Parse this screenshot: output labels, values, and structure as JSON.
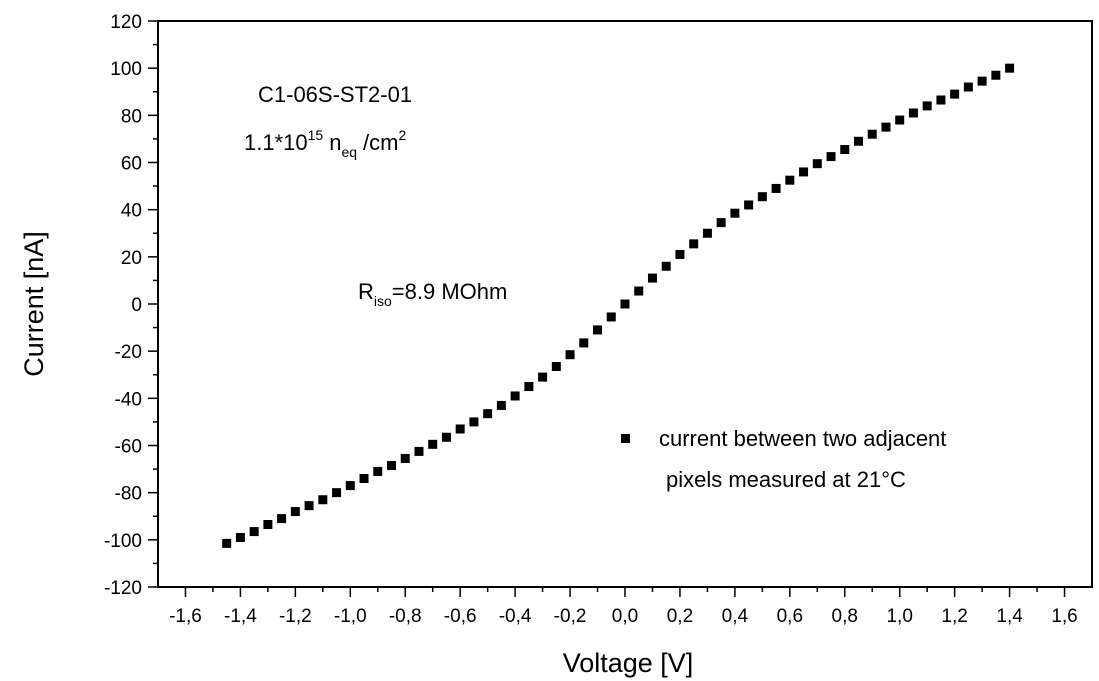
{
  "chart_data": {
    "type": "scatter",
    "xlabel": "Voltage [V]",
    "ylabel": "Current [nA]",
    "xlim": [
      -1.7,
      1.7
    ],
    "ylim": [
      -120,
      120
    ],
    "x_ticks": [
      -1.6,
      -1.4,
      -1.2,
      -1.0,
      -0.8,
      -0.6,
      -0.4,
      -0.2,
      0.0,
      0.2,
      0.4,
      0.6,
      0.8,
      1.0,
      1.2,
      1.4,
      1.6
    ],
    "x_tick_labels": [
      "-1,6",
      "-1,4",
      "-1,2",
      "-1,0",
      "-0,8",
      "-0,6",
      "-0,4",
      "-0,2",
      "0,0",
      "0,2",
      "0,4",
      "0,6",
      "0,8",
      "1,0",
      "1,2",
      "1,4",
      "1,6"
    ],
    "y_ticks": [
      -120,
      -100,
      -80,
      -60,
      -40,
      -20,
      0,
      20,
      40,
      60,
      80,
      100,
      120
    ],
    "y_tick_labels": [
      "-120",
      "-100",
      "-80",
      "-60",
      "-40",
      "-20",
      "0",
      "20",
      "40",
      "60",
      "80",
      "100",
      "120"
    ],
    "grid": false,
    "legend_position": "bottom-right",
    "marker_color": "#000000",
    "series": [
      {
        "name": "current between two adjacent pixels measured at 21°C",
        "x": [
          -1.45,
          -1.4,
          -1.35,
          -1.3,
          -1.25,
          -1.2,
          -1.15,
          -1.1,
          -1.05,
          -1.0,
          -0.95,
          -0.9,
          -0.85,
          -0.8,
          -0.75,
          -0.7,
          -0.65,
          -0.6,
          -0.55,
          -0.5,
          -0.45,
          -0.4,
          -0.35,
          -0.3,
          -0.25,
          -0.2,
          -0.15,
          -0.1,
          -0.05,
          0.0,
          0.05,
          0.1,
          0.15,
          0.2,
          0.25,
          0.3,
          0.35,
          0.4,
          0.45,
          0.5,
          0.55,
          0.6,
          0.65,
          0.7,
          0.75,
          0.8,
          0.85,
          0.9,
          0.95,
          1.0,
          1.05,
          1.1,
          1.15,
          1.2,
          1.25,
          1.3,
          1.35,
          1.4
        ],
        "y": [
          -101.5,
          -99,
          -96.5,
          -93.5,
          -91,
          -88,
          -85.5,
          -83,
          -80,
          -77,
          -74,
          -71,
          -68.5,
          -65.5,
          -62.5,
          -59.5,
          -56.5,
          -53,
          -50,
          -46.5,
          -43,
          -39,
          -35,
          -31,
          -26.5,
          -21.5,
          -16.5,
          -11,
          -5.5,
          0,
          5.5,
          11,
          16,
          21,
          25.5,
          30,
          34.5,
          38.5,
          42,
          45.5,
          49,
          52.5,
          56,
          59.5,
          62.5,
          65.5,
          69,
          72,
          75,
          78,
          81,
          84,
          86.5,
          89,
          92,
          94.5,
          97,
          100
        ]
      }
    ]
  },
  "annotations": {
    "sample_id": "C1-06S-ST2-01",
    "fluence_coeff": "1.1*10",
    "fluence_exp": "15",
    "fluence_n": "n",
    "fluence_sub": "eq",
    "fluence_unit": "/cm",
    "fluence_unit_exp": "2",
    "riso_R": "R",
    "riso_sub": "iso",
    "riso_value": "=8.9 MOhm"
  },
  "legend": {
    "line1": "current between two adjacent",
    "line2": "pixels measured at 21°C"
  }
}
